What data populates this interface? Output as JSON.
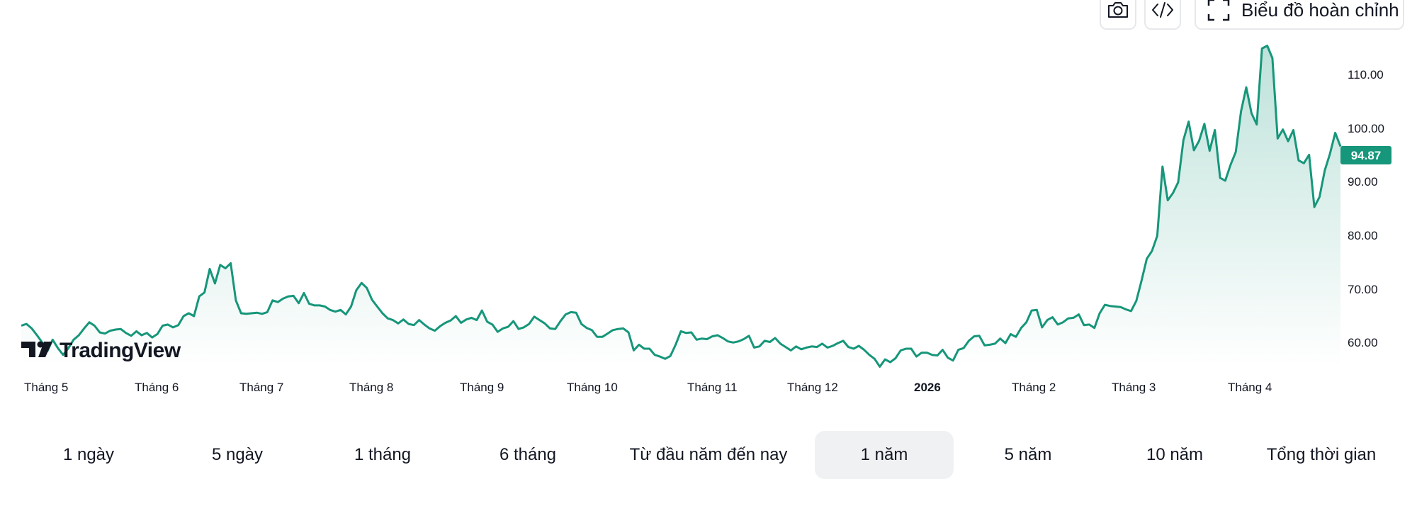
{
  "toolbar": {
    "camera_icon": "camera-icon",
    "embed_icon": "code-icon",
    "fullscreen_icon": "fullscreen-corners-icon",
    "full_chart_label": "Biểu đồ hoàn chỉnh"
  },
  "logo": {
    "text": "TradingView"
  },
  "chart_data": {
    "type": "area",
    "y_ticks": [
      "110.00",
      "100.00",
      "90.00",
      "80.00",
      "70.00",
      "60.00"
    ],
    "ylim": [
      56,
      114
    ],
    "x_ticks": [
      {
        "label": "Tháng 5",
        "bold": false
      },
      {
        "label": "Tháng 6",
        "bold": false
      },
      {
        "label": "Tháng 7",
        "bold": false
      },
      {
        "label": "Tháng 8",
        "bold": false
      },
      {
        "label": "Tháng 9",
        "bold": false
      },
      {
        "label": "Tháng 10",
        "bold": false
      },
      {
        "label": "Tháng 11",
        "bold": false
      },
      {
        "label": "Tháng 12",
        "bold": false
      },
      {
        "label": "2026",
        "bold": true
      },
      {
        "label": "Tháng 2",
        "bold": false
      },
      {
        "label": "Tháng 3",
        "bold": false
      },
      {
        "label": "Tháng 4",
        "bold": false
      }
    ],
    "last_price": 94.87,
    "last_price_label": "94.87",
    "line_color": "#16967a",
    "series": [
      {
        "values": [
          63.0,
          63.3,
          62.5,
          61.3,
          60.0,
          58.5,
          60.5,
          59.0,
          57.8,
          59.0,
          60.5,
          61.3,
          62.5,
          63.6,
          63.0,
          61.8,
          61.6,
          62.1,
          62.3,
          62.4,
          61.7,
          61.2,
          62.0,
          61.3,
          61.7,
          60.9,
          61.5,
          63.0,
          63.2,
          62.7,
          63.1,
          64.7,
          65.2,
          64.7,
          68.2,
          68.9,
          73.1,
          70.5,
          73.8,
          73.2,
          74.1,
          67.5,
          65.2,
          65.1,
          65.2,
          65.3,
          65.1,
          65.4,
          67.5,
          67.2,
          67.8,
          68.2,
          68.3,
          67.0,
          68.8,
          66.9,
          66.6,
          66.6,
          66.4,
          65.8,
          65.5,
          65.8,
          65.0,
          66.4,
          69.3,
          70.6,
          69.7,
          67.6,
          66.4,
          65.2,
          64.3,
          64.0,
          63.4,
          64.1,
          63.3,
          63.1,
          64.0,
          63.2,
          62.5,
          62.1,
          62.9,
          63.5,
          63.9,
          64.7,
          63.5,
          64.1,
          64.4,
          64.0,
          65.7,
          63.7,
          63.2,
          61.9,
          62.5,
          62.8,
          63.8,
          62.4,
          62.7,
          63.3,
          64.6,
          64.0,
          63.4,
          62.5,
          62.4,
          63.8,
          65.0,
          65.4,
          65.3,
          63.3,
          62.6,
          62.2,
          61.0,
          61.0,
          61.6,
          62.2,
          62.4,
          62.5,
          61.8,
          58.6,
          59.6,
          58.9,
          58.9,
          57.8,
          57.5,
          57.1,
          57.6,
          59.6,
          62.0,
          61.7,
          61.8,
          60.5,
          60.7,
          60.6,
          61.1,
          61.3,
          60.8,
          60.2,
          60.0,
          60.2,
          60.6,
          61.2,
          59.1,
          59.3,
          60.3,
          60.1,
          60.8,
          59.8,
          59.2,
          58.6,
          59.3,
          58.8,
          59.1,
          59.3,
          59.2,
          59.8,
          59.1,
          59.4,
          59.9,
          60.3,
          59.2,
          58.9,
          59.4,
          58.7,
          57.8,
          57.1,
          55.7,
          57.0,
          56.5,
          57.2,
          58.6,
          58.9,
          58.9,
          57.5,
          58.2,
          58.2,
          57.8,
          57.7,
          58.7,
          57.3,
          56.8,
          58.7,
          59.0,
          60.3,
          61.1,
          61.2,
          59.5,
          59.6,
          59.8,
          60.7,
          59.9,
          61.5,
          61.0,
          62.6,
          63.6,
          65.7,
          65.8,
          62.7,
          64.0,
          64.5,
          63.2,
          63.6,
          64.3,
          64.4,
          65.0,
          63.1,
          63.2,
          62.6,
          65.2,
          66.7,
          66.5,
          66.4,
          66.3,
          65.9,
          65.6,
          67.4,
          71.0,
          74.9,
          76.3,
          79.0,
          91.3,
          85.3,
          86.6,
          88.5,
          96.0,
          99.3,
          94.2,
          95.9,
          98.9,
          94.1,
          97.8,
          89.3,
          88.8,
          91.6,
          93.9,
          101.1,
          105.4,
          100.8,
          98.8,
          112.3,
          112.8,
          110.6,
          96.3,
          97.9,
          95.8,
          97.8,
          92.4,
          91.9,
          93.4,
          84.1,
          85.9,
          90.6,
          93.6,
          97.3,
          94.87
        ]
      }
    ]
  },
  "ranges": [
    {
      "label": "1 ngày",
      "active": false
    },
    {
      "label": "5 ngày",
      "active": false
    },
    {
      "label": "1 tháng",
      "active": false
    },
    {
      "label": "6 tháng",
      "active": false
    },
    {
      "label": "Từ đầu năm đến nay",
      "active": false
    },
    {
      "label": "1 năm",
      "active": true
    },
    {
      "label": "5 năm",
      "active": false
    },
    {
      "label": "10 năm",
      "active": false
    },
    {
      "label": "Tổng thời gian",
      "active": false
    }
  ]
}
